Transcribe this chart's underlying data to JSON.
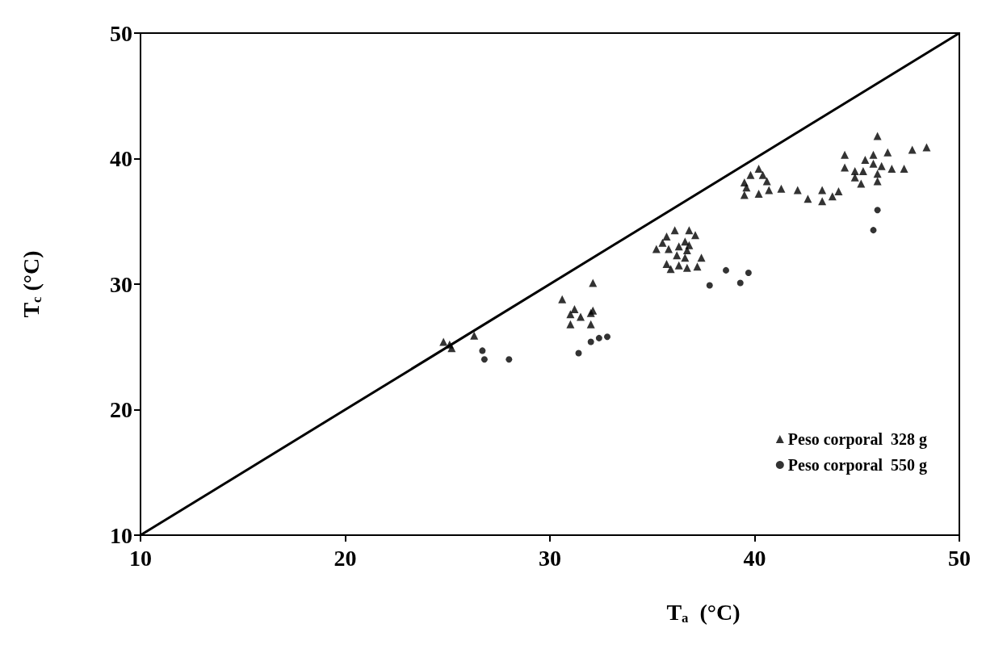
{
  "chart_data": {
    "type": "scatter",
    "xlabel": "T$_{a}$  (°C)",
    "ylabel": "T$_{c}$ (°C)",
    "xlim": [
      10,
      50
    ],
    "ylim": [
      10,
      50
    ],
    "xticks": [
      10,
      20,
      30,
      40,
      50
    ],
    "yticks": [
      10,
      20,
      30,
      40,
      50
    ],
    "grid": false,
    "legend": "bottom right",
    "series": [
      {
        "name": "Peso corporal  328 g",
        "color": "#000000",
        "marker": "triangle",
        "x": [
          24.8,
          25.1,
          25.2,
          26.3,
          30.6,
          31.2,
          31.0,
          31.5,
          31.0,
          32.1,
          32.1,
          32.0,
          32.0,
          36.1,
          36.8,
          37.1,
          35.7,
          35.5,
          35.2,
          35.8,
          36.3,
          36.6,
          36.8,
          36.7,
          36.2,
          36.6,
          37.4,
          35.7,
          35.9,
          36.3,
          36.7,
          37.2,
          40.2,
          39.8,
          40.4,
          40.6,
          39.5,
          39.6,
          39.5,
          40.2,
          40.7,
          41.3,
          42.1,
          42.6,
          43.3,
          43.3,
          43.8,
          46.0,
          44.4,
          45.4,
          45.8,
          46.5,
          47.7,
          48.4,
          44.4,
          44.9,
          45.3,
          45.8,
          46.2,
          46.7,
          47.3,
          46.0,
          44.9,
          45.2,
          46.0,
          44.1
        ],
        "values": [
          25.4,
          25.2,
          24.9,
          25.9,
          28.8,
          28.0,
          27.6,
          27.4,
          26.8,
          30.1,
          27.9,
          27.7,
          26.8,
          34.3,
          34.3,
          33.9,
          33.8,
          33.3,
          32.8,
          32.8,
          33.0,
          33.4,
          33.1,
          32.7,
          32.3,
          32.1,
          32.1,
          31.6,
          31.2,
          31.5,
          31.3,
          31.4,
          39.2,
          38.7,
          38.7,
          38.2,
          38.1,
          37.7,
          37.1,
          37.2,
          37.5,
          37.6,
          37.5,
          36.8,
          37.5,
          36.6,
          37.0,
          41.8,
          40.3,
          39.9,
          40.3,
          40.5,
          40.7,
          40.9,
          39.3,
          39.0,
          39.0,
          39.6,
          39.4,
          39.2,
          39.2,
          38.8,
          38.5,
          38.0,
          38.2,
          37.4
        ]
      },
      {
        "name": "Peso corporal  550 g",
        "color": "#000000",
        "marker": "circle",
        "x": [
          26.7,
          26.8,
          28.0,
          31.4,
          32.0,
          32.4,
          32.8,
          38.6,
          39.7,
          37.8,
          39.3,
          46.0,
          45.8
        ],
        "values": [
          24.7,
          24.0,
          24.0,
          24.5,
          25.4,
          25.7,
          25.8,
          31.1,
          30.9,
          29.9,
          30.1,
          35.9,
          34.3
        ]
      },
      {
        "type": "line",
        "color": "#000000",
        "x": [
          10,
          50
        ],
        "values": [
          10,
          50
        ]
      }
    ]
  }
}
